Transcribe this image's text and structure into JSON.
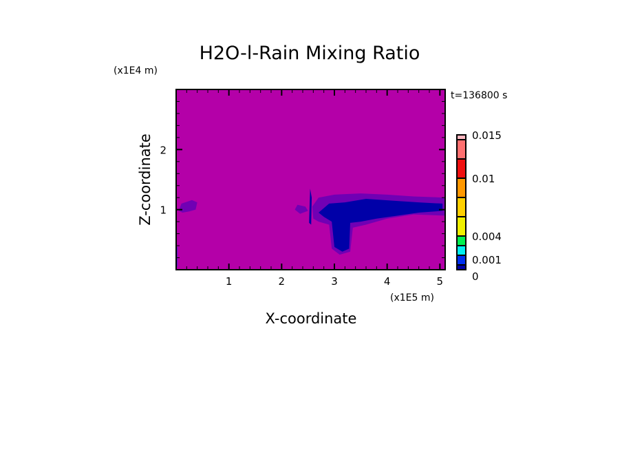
{
  "chart_data": {
    "type": "heatmap",
    "title": "H2O-l-Rain Mixing Ratio",
    "xlabel": "X-coordinate",
    "ylabel": "Z-coordinate",
    "x_scale_label": "(x1E5 m)",
    "y_scale_label": "(x1E4 m)",
    "time_label": "t=136800 s",
    "xlim": [
      0,
      5.1
    ],
    "ylim": [
      0,
      3
    ],
    "x_ticks": [
      1,
      2,
      3,
      4,
      5
    ],
    "x_tick_labels": [
      "1",
      "2",
      "3",
      "4",
      "5"
    ],
    "y_ticks": [
      1,
      2
    ],
    "y_tick_labels": [
      "1",
      "2"
    ],
    "minor_tick_step": 0.2,
    "background_color": "#b400a8",
    "colorbar": {
      "levels": [
        0,
        0.001,
        0.002,
        0.003,
        0.004,
        0.006,
        0.008,
        0.01,
        0.012,
        0.014,
        0.015
      ],
      "colors": [
        "#0000a8",
        "#0030f0",
        "#00f0f0",
        "#00f050",
        "#f0f000",
        "#ffd000",
        "#ff9800",
        "#f01010",
        "#ff7070",
        "#ffb8c0"
      ],
      "tick_labels": [
        {
          "level_index": 0,
          "label": "0"
        },
        {
          "level_index": 1,
          "label": "0.001"
        },
        {
          "level_index": 4,
          "label": "0.004"
        },
        {
          "level_index": 7,
          "label": "0.01"
        },
        {
          "level_index": 10,
          "label": "0.015"
        }
      ]
    },
    "regions": [
      {
        "name": "left-light-patch",
        "color": "#7000b4",
        "points": [
          [
            0.05,
            0.98
          ],
          [
            0.1,
            1.1
          ],
          [
            0.2,
            1.13
          ],
          [
            0.3,
            1.16
          ],
          [
            0.4,
            1.12
          ],
          [
            0.37,
            1.0
          ],
          [
            0.25,
            0.97
          ],
          [
            0.12,
            0.95
          ]
        ]
      },
      {
        "name": "mid-light-patch",
        "color": "#7000b4",
        "points": [
          [
            2.25,
            1.0
          ],
          [
            2.3,
            1.08
          ],
          [
            2.45,
            1.05
          ],
          [
            2.5,
            0.98
          ],
          [
            2.35,
            0.93
          ]
        ]
      },
      {
        "name": "main-light-band",
        "color": "#7000b4",
        "points": [
          [
            2.58,
            1.05
          ],
          [
            2.7,
            1.2
          ],
          [
            3.0,
            1.25
          ],
          [
            3.5,
            1.27
          ],
          [
            4.0,
            1.25
          ],
          [
            4.5,
            1.22
          ],
          [
            5.1,
            1.2
          ],
          [
            5.1,
            0.9
          ],
          [
            4.5,
            0.92
          ],
          [
            4.0,
            0.85
          ],
          [
            3.6,
            0.75
          ],
          [
            3.35,
            0.7
          ],
          [
            3.3,
            0.3
          ],
          [
            3.1,
            0.25
          ],
          [
            2.95,
            0.35
          ],
          [
            2.9,
            0.75
          ],
          [
            2.7,
            0.8
          ],
          [
            2.6,
            0.85
          ]
        ]
      },
      {
        "name": "main-dark-band",
        "color": "#0000a8",
        "points": [
          [
            2.7,
            0.95
          ],
          [
            2.9,
            1.1
          ],
          [
            3.2,
            1.12
          ],
          [
            3.6,
            1.18
          ],
          [
            4.1,
            1.15
          ],
          [
            4.6,
            1.12
          ],
          [
            5.05,
            1.1
          ],
          [
            5.05,
            0.98
          ],
          [
            4.6,
            0.95
          ],
          [
            4.2,
            0.9
          ],
          [
            3.8,
            0.85
          ],
          [
            3.5,
            0.8
          ],
          [
            3.3,
            0.78
          ],
          [
            3.28,
            0.35
          ],
          [
            3.15,
            0.3
          ],
          [
            3.0,
            0.38
          ],
          [
            2.95,
            0.8
          ],
          [
            2.8,
            0.88
          ]
        ]
      },
      {
        "name": "spike",
        "color": "#0000a8",
        "points": [
          [
            2.52,
            0.78
          ],
          [
            2.54,
            1.35
          ],
          [
            2.57,
            1.2
          ],
          [
            2.56,
            0.75
          ]
        ]
      },
      {
        "name": "left-edge-strip",
        "color": "#0030f0",
        "points": [
          [
            0,
            0.05
          ],
          [
            0.02,
            0.05
          ],
          [
            0.02,
            0.38
          ],
          [
            0,
            0.38
          ]
        ]
      }
    ]
  }
}
